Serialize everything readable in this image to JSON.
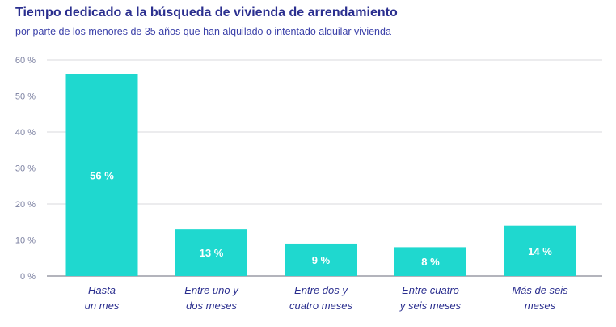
{
  "chart_data": {
    "type": "bar",
    "title": "Tiempo dedicado a la búsqueda de vivienda de arrendamiento",
    "subtitle": "por parte de los menores de 35 años que han alquilado o intentado alquilar vivienda",
    "categories": [
      [
        "Hasta",
        "un mes"
      ],
      [
        "Entre uno y",
        "dos meses"
      ],
      [
        "Entre dos y",
        "cuatro meses"
      ],
      [
        "Entre cuatro",
        "y seis meses"
      ],
      [
        "Más de seis",
        "meses"
      ]
    ],
    "values": [
      56,
      13,
      9,
      8,
      14
    ],
    "data_labels": [
      "56 %",
      "13 %",
      "9 %",
      "8 %",
      "14 %"
    ],
    "y_ticks": [
      0,
      10,
      20,
      30,
      40,
      50,
      60
    ],
    "y_tick_labels": [
      "0 %",
      "10 %",
      "20 %",
      "30 %",
      "40 %",
      "50 %",
      "60 %"
    ],
    "ylim": [
      0,
      60
    ],
    "grid": true,
    "bar_color": "#1fd8cf",
    "title_color": "#2b2f8f"
  }
}
